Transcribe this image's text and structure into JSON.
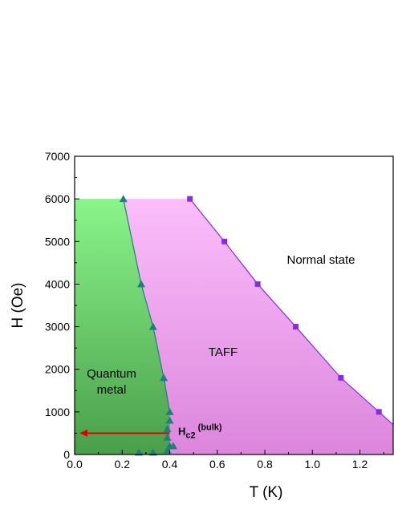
{
  "chart_data": {
    "type": "scatter",
    "title": "",
    "xlabel": "T (K)",
    "ylabel": "H (Oe)",
    "xlim": [
      0.0,
      1.34
    ],
    "ylim": [
      0,
      7000
    ],
    "x_ticks": [
      "0.0",
      "0.2",
      "0.4",
      "0.6",
      "0.8",
      "1.0",
      "1.2"
    ],
    "y_ticks": [
      "0",
      "1000",
      "2000",
      "3000",
      "4000",
      "5000",
      "6000",
      "7000"
    ],
    "grid": false,
    "colors": {
      "qm_top": "#8af58a",
      "qm_bottom": "#4a9e4a",
      "taff_top": "#fbbefb",
      "taff_bottom": "#dc86dc",
      "triangle_series": "#1f7f7f",
      "square_series": "#8a2be2",
      "arrow": "#dd0000"
    },
    "series": [
      {
        "marker": "triangle",
        "x": [
          0.205,
          0.28,
          0.33,
          0.375,
          0.4,
          0.4,
          0.39,
          0.39,
          0.4,
          0.39,
          0.415,
          0.27,
          0.33
        ],
        "y": [
          6000,
          4000,
          3000,
          1800,
          1000,
          800,
          600,
          400,
          200,
          100,
          200,
          50,
          50
        ]
      },
      {
        "marker": "square",
        "x": [
          0.485,
          0.63,
          0.77,
          0.93,
          1.12,
          1.28
        ],
        "y": [
          6000,
          5000,
          4000,
          3000,
          1800,
          1000
        ]
      }
    ],
    "annotations": {
      "quantum_metal_line1": "Quantum",
      "quantum_metal_line2": "metal",
      "taff": "TAFF",
      "normal_state": "Normal state",
      "hc2_main": "H",
      "hc2_sub": "c2",
      "hc2_sup": "(bulk)",
      "arrow": {
        "from_x": 0.4,
        "to_x": 0.02,
        "y": 500
      }
    }
  }
}
